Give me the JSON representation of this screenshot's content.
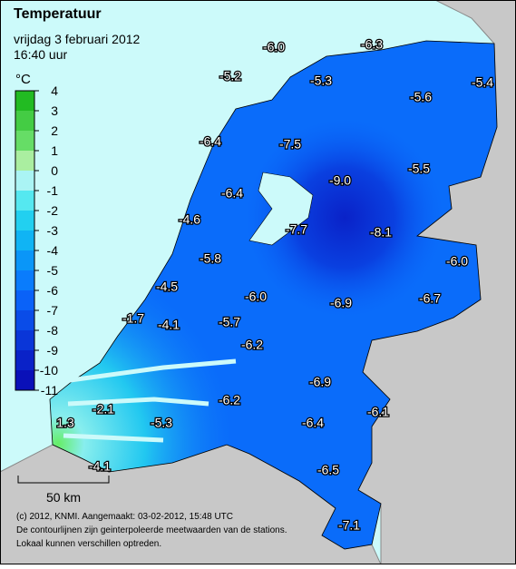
{
  "header": {
    "title": "Temperatuur",
    "date": "vrijdag 3 februari 2012",
    "time": "16:40 uur"
  },
  "legend": {
    "unit": "°C",
    "ticks": [
      4,
      3,
      2,
      1,
      0,
      -1,
      -2,
      -3,
      -4,
      -5,
      -6,
      -7,
      -8,
      -9,
      -10,
      -11
    ],
    "colors": [
      "#22bb22",
      "#44cc44",
      "#66dd66",
      "#aaeea0",
      "#aaf4f4",
      "#55e8f0",
      "#22d0f0",
      "#10b4f4",
      "#0a96f8",
      "#0a7cfc",
      "#0a62f8",
      "#0a4ce8",
      "#0a36d8",
      "#0a22c8",
      "#0a10b8"
    ]
  },
  "stations": [
    "-6.0",
    "-6.3",
    "-5.2",
    "-5.3",
    "-5.4",
    "-5.6",
    "-6.4",
    "-7.5",
    "-9.0",
    "-5.5",
    "-6.4",
    "-4.6",
    "-7.7",
    "-8.1",
    "-6.0",
    "-5.8",
    "-4.5",
    "-6.0",
    "-6.9",
    "-6.7",
    "-1.7",
    "-4.1",
    "-5.7",
    "-6.2",
    "-6.9",
    "-2.1",
    "-6.2",
    "-6.4",
    "-6.1",
    "1.3",
    "-5.3",
    "-4.1",
    "-6.5",
    "-7.1"
  ],
  "scale": "50 km",
  "footer": [
    "(c) 2012, KNMI. Aangemaakt: 03-02-2012, 15:48 UTC",
    "De contourlijnen zijn geinterpoleerde meetwaarden van de stations.",
    "Lokaal kunnen verschillen optreden."
  ]
}
